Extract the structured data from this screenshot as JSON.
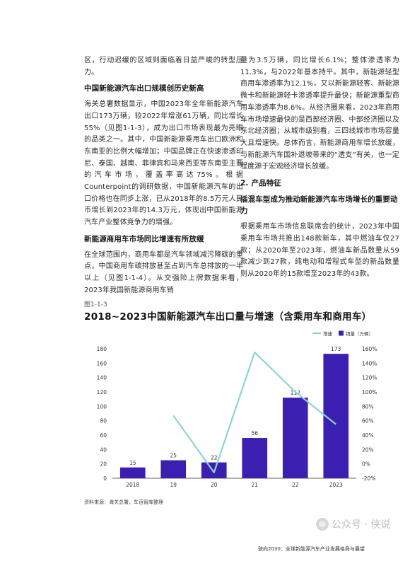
{
  "left_column": {
    "p1": "区，行动迟缓的区域则面临着日益严峻的转型压力。",
    "h1": "中国新能源汽车出口规模创历史新高",
    "p2": "海关总署数据显示，中国2023年全年新能源汽车出口173万辆，较2022年增涨61万辆，同比增长55%（见图1-1-3），成为出口市场表现最为亮眼的品类之一。其中，中国新能源乘用车出口欧洲和东南亚的比例大幅增加；中国品牌正在快速渗透印尼、泰国、越南、菲律宾和马来西亚等东南亚主要的汽车市场，覆盖率高达75%。根据Counterpoint的调研数据，中国新能源汽车的出口价格也在同步上涨，已从2018年的8.5万元人民币增长到2023年的14.3万元，体现出中国新能源汽车产业整体竞争力的增强。",
    "h2": "新能源商用车市场同比增速有所放缓",
    "p3": "在全球范围内，商用车都是汽车领域减污降碳的重点，中国商用车碳排放甚至占到汽车总排放的一半以上（见图1-1-4）。从交强险上牌数据来看，2023年我国新能源商用车销"
  },
  "right_column": {
    "p1": "量为3.5万辆，同比增长6.1%；整体渗透率为11.3%，与2022年基本持平。其中，新能源轻型商用车渗透率为12.1%，又以新能源轻客、新能源微卡和新能源轻卡渗透率提升最快；新能源重型商用车渗透率为8.6%。从经济圈来看，2023年商用车市场增速最快的是西部经济圈、中部经济圈以及东北经济圈；从城市级别看，三四线城市市场容量大且增速快。总体而言，新能源商用车增长放缓，与新能源汽车国补退坡带来的“透支”有关，也一定程度源于宏观经济增长放缓。",
    "section_num": "2.",
    "section_title": "产品特征",
    "h1": "插混车型成为推动新能源汽车市场增长的重要动力",
    "p2": "根据乘用车市场信息联席会的统计，2023年中国乘用车市场共推出148款新车，其中燃油车仅27款；从2020年至2023年，燃油车新品数量从59款减少到27款，纯电动和增程式车型的新品数量则从2020年的15款增至2023年的43款。"
  },
  "figure": {
    "number": "图1-1-3",
    "title": "2018~2023中国新能源汽车出口量与增速（含乘用车和商用车）",
    "source": "资料来源：海关总署，车百智库整理"
  },
  "chart_data": {
    "type": "bar",
    "categories": [
      "2018",
      "19",
      "20",
      "21",
      "22",
      "2023"
    ],
    "series": [
      {
        "name": "销量（万辆）",
        "values": [
          15,
          25,
          22,
          56,
          112,
          173
        ],
        "color": "#3a1fb0",
        "axis": "left"
      },
      {
        "name": "增速",
        "values": [
          null,
          67,
          -12,
          155,
          100,
          55
        ],
        "color": "#8fd3cd",
        "axis": "right",
        "kind": "line"
      }
    ],
    "data_labels": [
      "15",
      "25",
      "22",
      "56",
      "112",
      "173"
    ],
    "ylim_left": [
      0,
      180
    ],
    "yticks_left": [
      "0",
      "20",
      "40",
      "60",
      "80",
      "100",
      "120",
      "140",
      "160",
      "180"
    ],
    "ylim_right": [
      -20,
      160
    ],
    "yticks_right": [
      "-20%",
      "0%",
      "20%",
      "40%",
      "60%",
      "80%",
      "100%",
      "120%",
      "140%",
      "160%"
    ],
    "legend_position": "top-right",
    "grid": false
  },
  "watermark": "公众号 · 侠说",
  "footer": "驶向2030：全球新能源汽车产业发展格局与展望"
}
